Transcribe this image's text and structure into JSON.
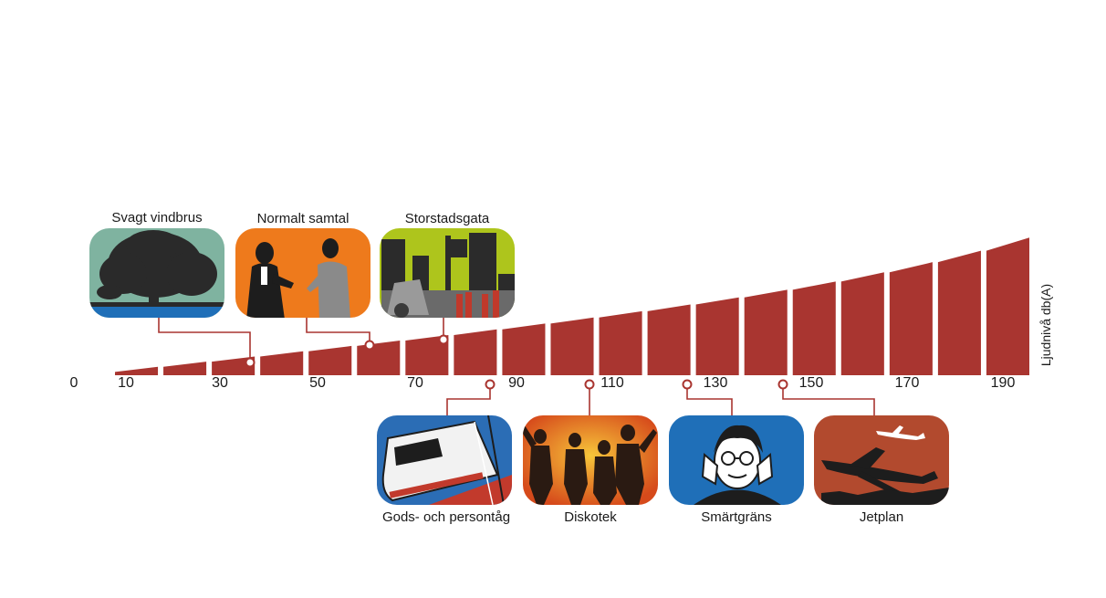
{
  "accent_color": "#a93530",
  "axis": {
    "title": "Ljudnivå db(A)",
    "ticks": [
      "0",
      "10",
      "30",
      "50",
      "70",
      "90",
      "110",
      "130",
      "150",
      "170",
      "190"
    ]
  },
  "sources": {
    "wind": "Svagt vindbrus",
    "talk": "Normalt samtal",
    "city": "Storstadsgata",
    "train": "Gods- och persontåg",
    "disco": "Diskotek",
    "pain": "Smärtgräns",
    "jet": "Jetplan"
  },
  "image_backgrounds": {
    "wind": "#7fb3a0",
    "talk": "#ee7a1c",
    "city": "#aec51c",
    "train": "#2b6db5",
    "disco": "#d64a1b",
    "pain": "#1f6fb8",
    "jet": "#b24a2e"
  }
}
